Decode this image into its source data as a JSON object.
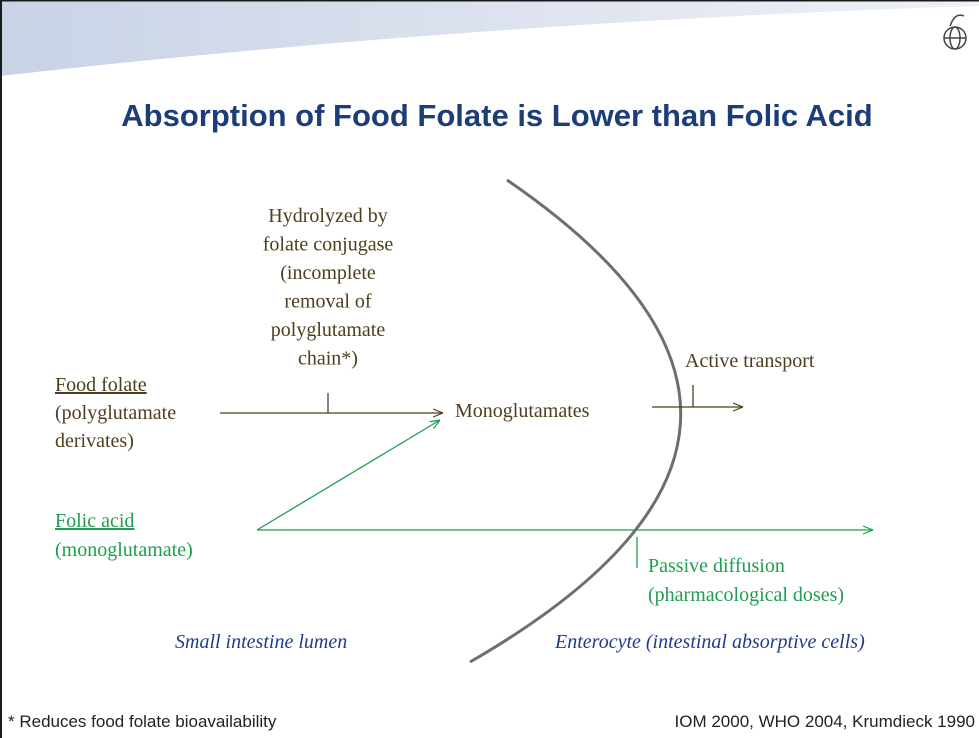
{
  "title": "Absorption of Food Folate is Lower than Folic Acid",
  "nodes": [
    {
      "label": [
        "Hydrolyzed by",
        "folate conjugase",
        "(incomplete",
        "removal of",
        "polyglutamate",
        "chain*)"
      ]
    },
    {
      "label": [
        "Food folate",
        "(polyglutamate",
        "derivates)"
      ]
    },
    {
      "label": [
        "Monoglutamates"
      ]
    },
    {
      "label": [
        "Active transport"
      ]
    },
    {
      "label": [
        "Folic acid",
        "(monoglutamate)"
      ]
    },
    {
      "label": [
        "Passive diffusion",
        "(pharmacological doses)"
      ]
    },
    {
      "label": [
        "Small intestine lumen"
      ]
    },
    {
      "label": [
        "Enterocyte (intestinal absorptive cells)"
      ]
    }
  ],
  "footnote": "* Reduces food folate bioavailability",
  "citation": "IOM 2000, WHO 2004, Krumdieck 1990"
}
